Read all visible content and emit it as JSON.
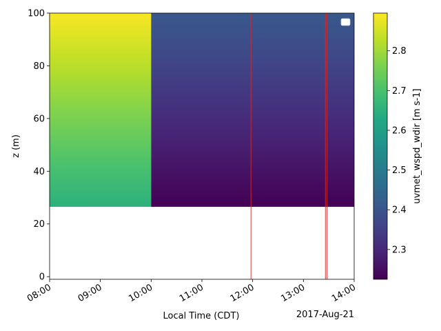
{
  "chart_data": {
    "type": "heatmap",
    "title": "",
    "xlabel": "Local Time (CDT)",
    "ylabel": "z (m)",
    "date_label": "2017-Aug-21",
    "x_ticks": [
      "08:00",
      "09:00",
      "10:00",
      "11:00",
      "12:00",
      "13:00",
      "14:00"
    ],
    "x_range": [
      "08:00",
      "14:00"
    ],
    "y_ticks": [
      0,
      20,
      40,
      60,
      80,
      100
    ],
    "ylim": [
      -1,
      100
    ],
    "colormap": "viridis",
    "colorbar": {
      "label": "uvmet_wspd_wdir [m s-1]",
      "range": [
        2.225,
        2.895
      ],
      "ticks": [
        "2.3",
        "2.4",
        "2.5",
        "2.6",
        "2.7",
        "2.8"
      ],
      "tick_values": [
        2.3,
        2.4,
        2.5,
        2.6,
        2.7,
        2.8
      ]
    },
    "cells": [
      {
        "x_start": "08:00",
        "x_end": "10:00",
        "z_bottom": 26.5,
        "z_top": 100,
        "value_bottom": 2.65,
        "value_top": 2.89
      },
      {
        "x_start": "10:00",
        "x_end": "14:00",
        "z_bottom": 26.5,
        "z_top": 100,
        "value_bottom": 2.225,
        "value_top": 2.41
      }
    ],
    "vertical_lines": {
      "color": "#d62728",
      "times": [
        "11:58",
        "13:26",
        "13:28"
      ]
    },
    "legend": {
      "placement": "upper right",
      "entries": []
    },
    "grid": false
  }
}
